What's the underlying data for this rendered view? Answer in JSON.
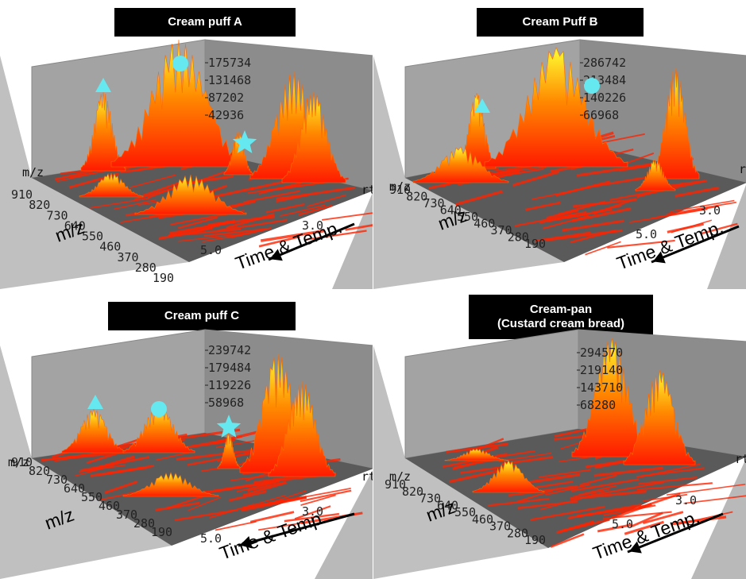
{
  "chart_data": [
    {
      "type": "surface3d",
      "title": "Cream puff A",
      "z_ticks": [
        "175734",
        "131468",
        "87202",
        "42936"
      ],
      "mz_ticks": [
        "910",
        "820",
        "730",
        "640",
        "550",
        "460",
        "370",
        "280",
        "190"
      ],
      "rt_ticks": [
        "3.0",
        "5.0"
      ],
      "axis_mz": "m/z",
      "axis_mz_corner": "m/z",
      "axis_rt": "rt",
      "axis_time": "Time & Temp.",
      "markers": [
        {
          "shape": "triangle"
        },
        {
          "shape": "circle"
        },
        {
          "shape": "star"
        }
      ]
    },
    {
      "type": "surface3d",
      "title": "Cream Puff B",
      "z_ticks": [
        "286742",
        "213484",
        "140226",
        "66968"
      ],
      "mz_ticks": [
        "910",
        "820",
        "730",
        "640",
        "550",
        "460",
        "370",
        "280",
        "190"
      ],
      "rt_ticks": [
        "3.0",
        "5.0"
      ],
      "axis_mz": "m/z",
      "axis_mz_corner": "m/z",
      "axis_rt": "rt",
      "axis_time": "Time & Temp.",
      "markers": [
        {
          "shape": "triangle"
        },
        {
          "shape": "circle"
        }
      ]
    },
    {
      "type": "surface3d",
      "title": "Cream puff C",
      "z_ticks": [
        "239742",
        "179484",
        "119226",
        "58968"
      ],
      "mz_ticks": [
        "910",
        "820",
        "730",
        "640",
        "550",
        "460",
        "370",
        "280",
        "190"
      ],
      "rt_ticks": [
        "3.0",
        "5.0"
      ],
      "axis_mz": "m/z",
      "axis_mz_corner": "m/z",
      "axis_rt": "rt",
      "axis_time": "Time & Temp.",
      "markers": [
        {
          "shape": "triangle"
        },
        {
          "shape": "circle"
        },
        {
          "shape": "star"
        }
      ]
    },
    {
      "type": "surface3d",
      "title": "Cream-pan",
      "subtitle": "(Custard cream bread)",
      "z_ticks": [
        "294570",
        "219140",
        "143710",
        "68280"
      ],
      "mz_ticks": [
        "910",
        "820",
        "730",
        "640",
        "550",
        "460",
        "370",
        "280",
        "190"
      ],
      "rt_ticks": [
        "3.0",
        "5.0"
      ],
      "axis_mz": "m/z",
      "axis_mz_corner": "m/z",
      "axis_rt": "rt",
      "axis_time": "Time & Temp.",
      "markers": []
    }
  ],
  "colors": {
    "wall": "#a3a3a3",
    "wall_dark": "#8c8c8c",
    "floor": "#5a5a5a",
    "peak_base": "#ff1a00",
    "peak_top": "#ffff33",
    "marker": "#66e8f0"
  }
}
